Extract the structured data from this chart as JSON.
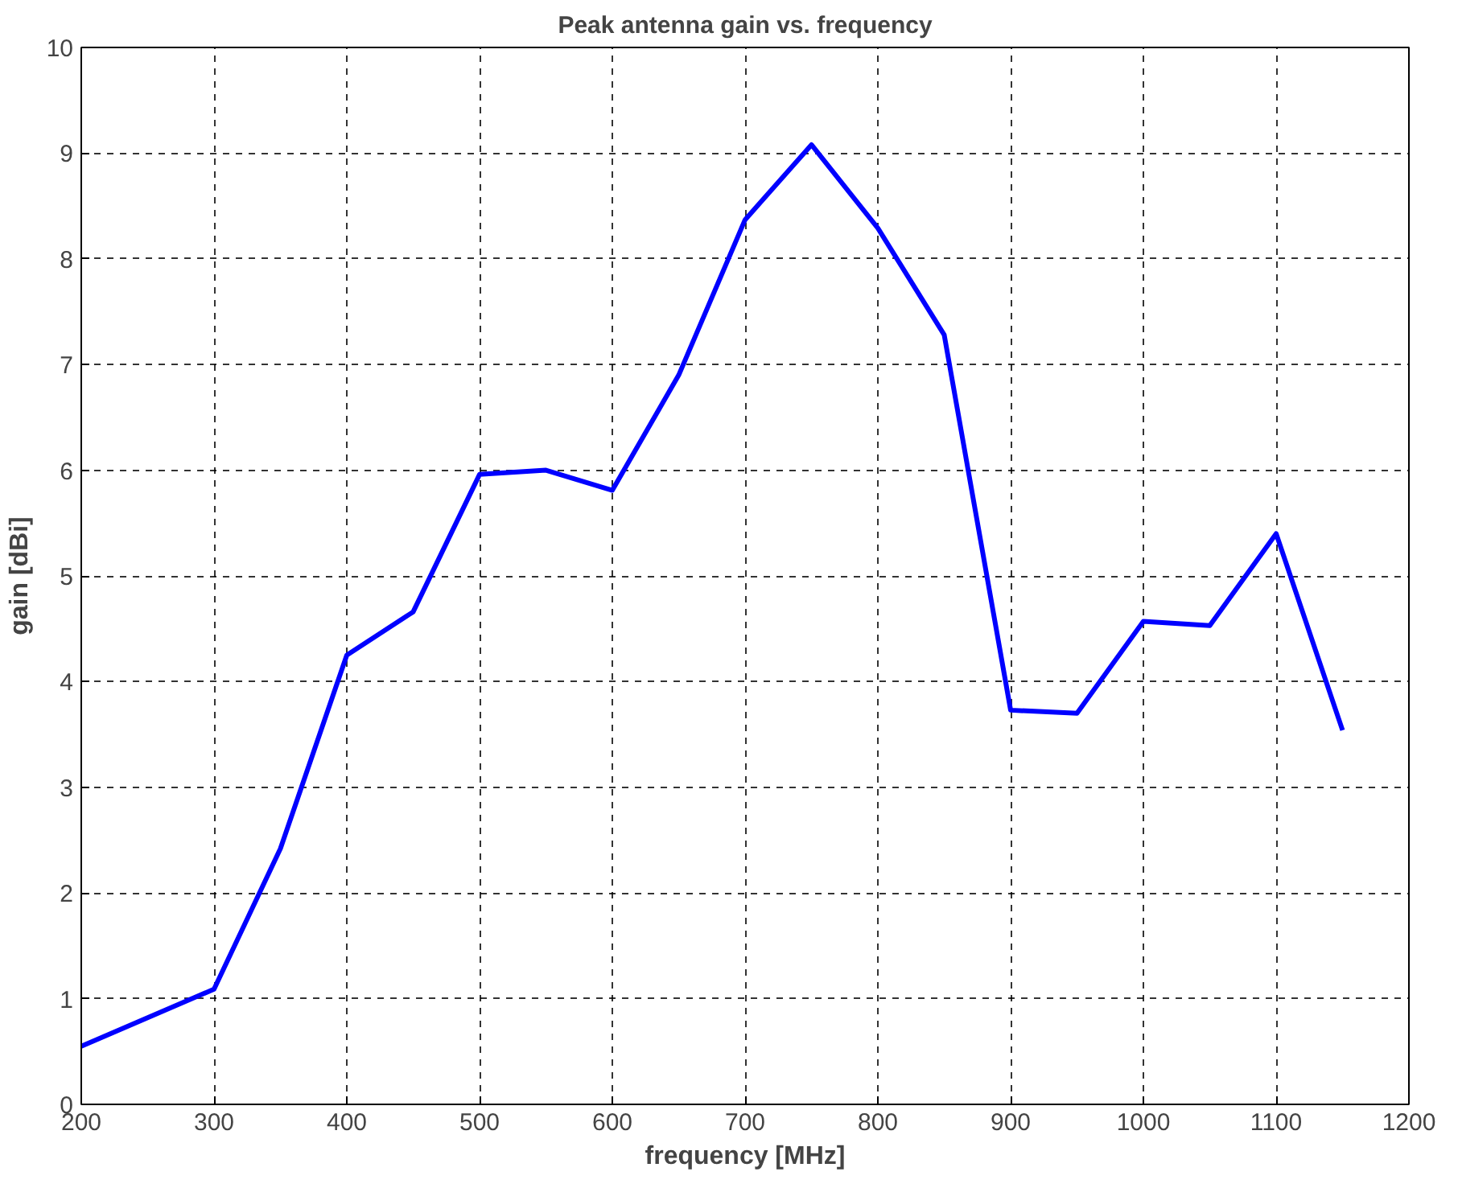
{
  "chart_data": {
    "type": "line",
    "title": "Peak antenna gain vs. frequency",
    "xlabel": "frequency [MHz]",
    "ylabel": "gain [dBi]",
    "x": [
      200,
      300,
      350,
      400,
      450,
      500,
      550,
      600,
      650,
      700,
      750,
      800,
      850,
      900,
      950,
      1000,
      1050,
      1100,
      1150
    ],
    "series": [
      {
        "color": "#0000ff",
        "values": [
          0.55,
          1.09,
          2.42,
          4.25,
          4.66,
          5.96,
          6.0,
          5.81,
          6.9,
          8.37,
          9.08,
          8.29,
          7.28,
          3.73,
          3.7,
          4.57,
          4.53,
          5.4,
          3.54
        ]
      }
    ],
    "xlim": [
      200,
      1200
    ],
    "xticks": [
      200,
      300,
      400,
      500,
      600,
      700,
      800,
      900,
      1000,
      1100,
      1200
    ],
    "ylim": [
      0,
      10
    ],
    "yticks": [
      0,
      1,
      2,
      3,
      4,
      5,
      6,
      7,
      8,
      9,
      10
    ],
    "grid": true,
    "line_style": "solid",
    "marker": "none"
  }
}
